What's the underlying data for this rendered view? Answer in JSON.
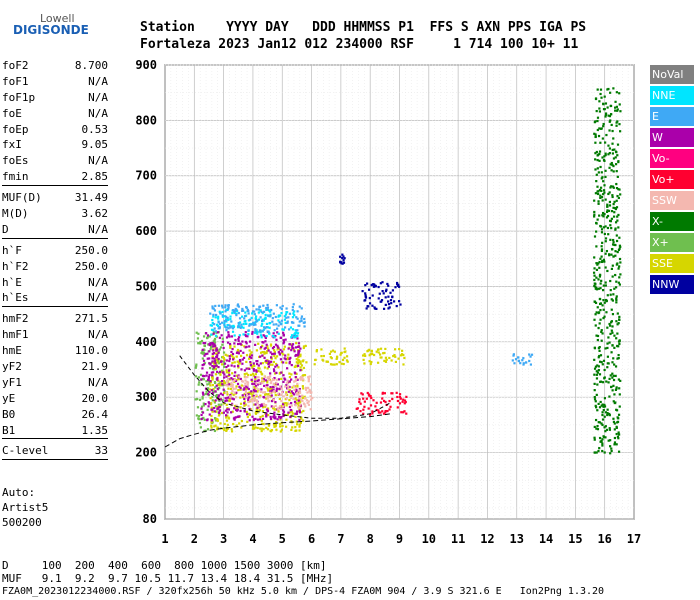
{
  "logo": {
    "top": "Lowell",
    "bottom": "DIGISONDE"
  },
  "header": {
    "line1": "Station    YYYY DAY   DDD HHMMSS P1  FFS S AXN PPS IGA PS",
    "line2": "Fortaleza 2023 Jan12 012 234000 RSF     1 714 100 10+ 11"
  },
  "params": [
    {
      "name": "foF2",
      "value": "8.700"
    },
    {
      "name": "foF1",
      "value": "N/A"
    },
    {
      "name": "foF1p",
      "value": "N/A"
    },
    {
      "name": "foE",
      "value": "N/A"
    },
    {
      "name": "foEp",
      "value": "0.53"
    },
    {
      "name": "fxI",
      "value": "9.05"
    },
    {
      "name": "foEs",
      "value": "N/A"
    },
    {
      "name": "fmin",
      "value": "2.85"
    },
    {
      "name": "MUF(D)",
      "value": "31.49"
    },
    {
      "name": "M(D)",
      "value": "3.62"
    },
    {
      "name": "D",
      "value": "N/A"
    },
    {
      "name": "h`F",
      "value": "250.0"
    },
    {
      "name": "h`F2",
      "value": "250.0"
    },
    {
      "name": "h`E",
      "value": "N/A"
    },
    {
      "name": "h`Es",
      "value": "N/A"
    },
    {
      "name": "hmF2",
      "value": "271.5"
    },
    {
      "name": "hmF1",
      "value": "N/A"
    },
    {
      "name": "hmE",
      "value": "110.0"
    },
    {
      "name": "yF2",
      "value": "21.9"
    },
    {
      "name": "yF1",
      "value": "N/A"
    },
    {
      "name": "yE",
      "value": "20.0"
    },
    {
      "name": "B0",
      "value": "26.4"
    },
    {
      "name": "B1",
      "value": "1.35"
    },
    {
      "name": "C-level",
      "value": "33"
    }
  ],
  "auto_block": {
    "line1": "Auto:",
    "line2": "Artist5",
    "line3": "500200"
  },
  "legend": [
    {
      "label": "NoVal",
      "color": "#808080"
    },
    {
      "label": "NNE",
      "color": "#00e5ff"
    },
    {
      "label": "E",
      "color": "#3fa9f5"
    },
    {
      "label": "W",
      "color": "#aa00aa"
    },
    {
      "label": "Vo-",
      "color": "#ff0080"
    },
    {
      "label": "Vo+",
      "color": "#ff0030"
    },
    {
      "label": "SSW",
      "color": "#f4b8b0"
    },
    {
      "label": "X-",
      "color": "#007a00"
    },
    {
      "label": "X+",
      "color": "#6fbf4f"
    },
    {
      "label": "SSE",
      "color": "#d6d600"
    },
    {
      "label": "NNW",
      "color": "#0000a0"
    }
  ],
  "footer": {
    "d_line": "D     100  200  400  600  800 1000 1500 3000 [km]",
    "muf_line": "MUF   9.1  9.2  9.7 10.5 11.7 13.4 18.4 31.5 [MHz]",
    "info_line": "FZA0M_2023012234000.RSF / 320fx256h 50 kHz 5.0 km / DPS-4 FZA0M 904 / 3.9 S 321.6 E   Ion2Png 1.3.20"
  },
  "chart_data": {
    "type": "scatter",
    "title": "",
    "xlabel": "",
    "ylabel": "",
    "xlim": [
      1,
      17
    ],
    "ylim": [
      80,
      900
    ],
    "x_ticks": [
      "1",
      "2",
      "3",
      "4",
      "5",
      "6",
      "7",
      "8",
      "9",
      "10",
      "11",
      "12",
      "13",
      "14",
      "15",
      "16",
      "17"
    ],
    "y_ticks": [
      "80",
      "200",
      "300",
      "400",
      "500",
      "600",
      "700",
      "800",
      "900"
    ],
    "grid": true,
    "legend_placement": "right",
    "trace_profile": {
      "x": [
        1.5,
        2.0,
        2.5,
        3.0,
        4.0,
        5.0,
        6.0,
        7.0,
        8.0,
        8.7
      ],
      "y": [
        375,
        340,
        310,
        290,
        275,
        268,
        262,
        262,
        270,
        290
      ]
    },
    "trace_lower": {
      "x": [
        1.0,
        1.5,
        2.0,
        2.5,
        3.0,
        4.0,
        5.0,
        6.0,
        7.0,
        8.0,
        8.7
      ],
      "y": [
        210,
        225,
        233,
        240,
        244,
        250,
        254,
        257,
        261,
        265,
        270
      ]
    },
    "echo_regions": [
      {
        "mode": "X+",
        "x": [
          2.0,
          3.0
        ],
        "y": [
          240,
          420
        ]
      },
      {
        "mode": "SSE",
        "x": [
          2.5,
          5.8
        ],
        "y": [
          240,
          400
        ]
      },
      {
        "mode": "W",
        "x": [
          2.2,
          5.6
        ],
        "y": [
          260,
          420
        ]
      },
      {
        "mode": "SSW",
        "x": [
          3.0,
          6.0
        ],
        "y": [
          280,
          340
        ]
      },
      {
        "mode": "NNE",
        "x": [
          2.5,
          5.5
        ],
        "y": [
          410,
          460
        ]
      },
      {
        "mode": "E",
        "x": [
          2.5,
          5.8
        ],
        "y": [
          420,
          470
        ]
      },
      {
        "mode": "NNW",
        "x": [
          7.7,
          9.0
        ],
        "y": [
          460,
          510
        ]
      },
      {
        "mode": "NNW",
        "x": [
          6.9,
          7.1
        ],
        "y": [
          540,
          560
        ]
      },
      {
        "mode": "Vo+",
        "x": [
          7.5,
          9.2
        ],
        "y": [
          270,
          310
        ]
      },
      {
        "mode": "SSE",
        "x": [
          6.0,
          7.2
        ],
        "y": [
          360,
          390
        ]
      },
      {
        "mode": "SSE",
        "x": [
          7.7,
          9.2
        ],
        "y": [
          360,
          390
        ]
      },
      {
        "mode": "E",
        "x": [
          12.8,
          13.5
        ],
        "y": [
          360,
          380
        ]
      },
      {
        "mode": "X-",
        "x": [
          15.6,
          16.5
        ],
        "y": [
          200,
          860
        ]
      }
    ]
  }
}
